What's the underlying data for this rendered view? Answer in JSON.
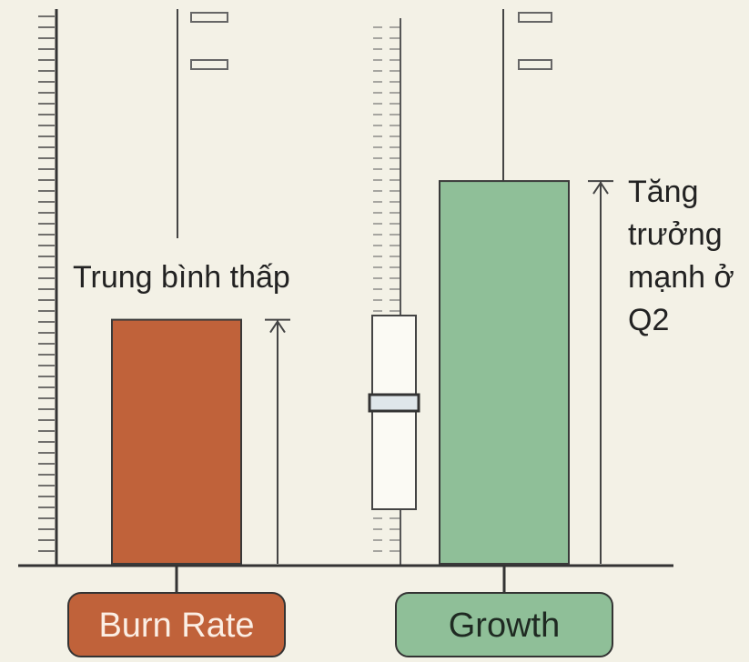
{
  "chart_data": {
    "type": "bar",
    "categories": [
      "Burn Rate",
      "Growth"
    ],
    "values": [
      44,
      69
    ],
    "colors": [
      "#c0623a",
      "#8fbf98"
    ],
    "ylim": [
      0,
      100
    ],
    "annotations": [
      "Trung bình thấp",
      "Tăng trưởng mạnh ở Q2"
    ]
  }
}
